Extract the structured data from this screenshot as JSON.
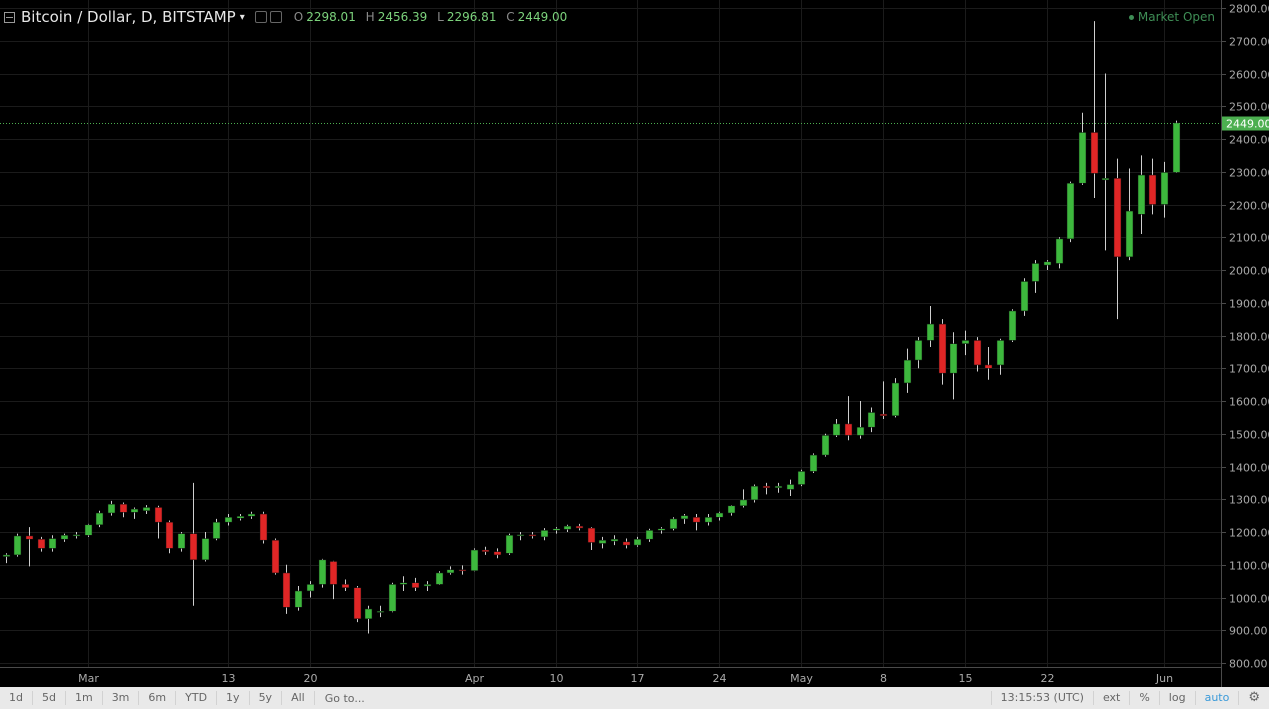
{
  "legend": {
    "title": "Bitcoin / Dollar, D, BITSTAMP",
    "caret": "▾",
    "open_label": "O",
    "open": "2298.01",
    "high_label": "H",
    "high": "2456.39",
    "low_label": "L",
    "low": "2296.81",
    "close_label": "C",
    "close": "2449.00"
  },
  "market_status": "Market Open",
  "toolbar": {
    "ranges": [
      "1d",
      "5d",
      "1m",
      "3m",
      "6m",
      "YTD",
      "1y",
      "5y",
      "All"
    ],
    "goto": "Go to...",
    "time": "13:15:53 (UTC)",
    "ext": "ext",
    "percent": "%",
    "log": "log",
    "auto": "auto",
    "settings_icon": "gear-icon"
  },
  "colors": {
    "up": "#3db83d",
    "down": "#e02626",
    "grid": "#1b1b1b",
    "background": "#000000",
    "last_price": "#4caf50"
  },
  "chart_data": {
    "type": "candlestick",
    "title": "Bitcoin / Dollar, D, BITSTAMP",
    "last_price_label": "2449.00",
    "ylim": [
      780,
      2840
    ],
    "y_ticks": [
      "800.00",
      "900.00",
      "1000.00",
      "1100.00",
      "1200.00",
      "1300.00",
      "1400.00",
      "1500.00",
      "1600.00",
      "1700.00",
      "1800.00",
      "1900.00",
      "2000.00",
      "2100.00",
      "2200.00",
      "2300.00",
      "2400.00",
      "2500.00",
      "2600.00",
      "2700.00",
      "2800.00"
    ],
    "y_tick_values": [
      800,
      900,
      1000,
      1100,
      1200,
      1300,
      1400,
      1500,
      1600,
      1700,
      1800,
      1900,
      2000,
      2100,
      2200,
      2300,
      2400,
      2500,
      2600,
      2700,
      2800
    ],
    "x_ticks": [
      {
        "label": "Mar",
        "date": "2017-03-01"
      },
      {
        "label": "13",
        "date": "2017-03-13"
      },
      {
        "label": "20",
        "date": "2017-03-20"
      },
      {
        "label": "Apr",
        "date": "2017-04-03"
      },
      {
        "label": "10",
        "date": "2017-04-10"
      },
      {
        "label": "17",
        "date": "2017-04-17"
      },
      {
        "label": "24",
        "date": "2017-04-24"
      },
      {
        "label": "May",
        "date": "2017-05-01"
      },
      {
        "label": "8",
        "date": "2017-05-08"
      },
      {
        "label": "15",
        "date": "2017-05-15"
      },
      {
        "label": "22",
        "date": "2017-05-22"
      },
      {
        "label": "Jun",
        "date": "2017-06-01"
      }
    ],
    "candles": [
      {
        "date": "2017-02-22",
        "o": 1125,
        "h": 1135,
        "l": 1105,
        "c": 1130
      },
      {
        "date": "2017-02-23",
        "o": 1130,
        "h": 1195,
        "l": 1125,
        "c": 1188
      },
      {
        "date": "2017-02-24",
        "o": 1188,
        "h": 1215,
        "l": 1095,
        "c": 1178
      },
      {
        "date": "2017-02-25",
        "o": 1178,
        "h": 1185,
        "l": 1140,
        "c": 1150
      },
      {
        "date": "2017-02-26",
        "o": 1150,
        "h": 1190,
        "l": 1140,
        "c": 1180
      },
      {
        "date": "2017-02-27",
        "o": 1178,
        "h": 1195,
        "l": 1170,
        "c": 1190
      },
      {
        "date": "2017-02-28",
        "o": 1188,
        "h": 1200,
        "l": 1180,
        "c": 1192
      },
      {
        "date": "2017-03-01",
        "o": 1190,
        "h": 1225,
        "l": 1185,
        "c": 1222
      },
      {
        "date": "2017-03-02",
        "o": 1222,
        "h": 1265,
        "l": 1215,
        "c": 1258
      },
      {
        "date": "2017-03-03",
        "o": 1258,
        "h": 1295,
        "l": 1250,
        "c": 1285
      },
      {
        "date": "2017-03-04",
        "o": 1285,
        "h": 1290,
        "l": 1245,
        "c": 1260
      },
      {
        "date": "2017-03-05",
        "o": 1260,
        "h": 1275,
        "l": 1240,
        "c": 1270
      },
      {
        "date": "2017-03-06",
        "o": 1265,
        "h": 1282,
        "l": 1255,
        "c": 1275
      },
      {
        "date": "2017-03-07",
        "o": 1275,
        "h": 1280,
        "l": 1180,
        "c": 1230
      },
      {
        "date": "2017-03-08",
        "o": 1230,
        "h": 1235,
        "l": 1135,
        "c": 1150
      },
      {
        "date": "2017-03-09",
        "o": 1150,
        "h": 1200,
        "l": 1140,
        "c": 1195
      },
      {
        "date": "2017-03-10",
        "o": 1195,
        "h": 1350,
        "l": 975,
        "c": 1115
      },
      {
        "date": "2017-03-11",
        "o": 1115,
        "h": 1200,
        "l": 1110,
        "c": 1180
      },
      {
        "date": "2017-03-12",
        "o": 1180,
        "h": 1240,
        "l": 1175,
        "c": 1230
      },
      {
        "date": "2017-03-13",
        "o": 1230,
        "h": 1255,
        "l": 1220,
        "c": 1245
      },
      {
        "date": "2017-03-14",
        "o": 1242,
        "h": 1255,
        "l": 1235,
        "c": 1248
      },
      {
        "date": "2017-03-15",
        "o": 1248,
        "h": 1262,
        "l": 1240,
        "c": 1255
      },
      {
        "date": "2017-03-16",
        "o": 1255,
        "h": 1262,
        "l": 1165,
        "c": 1175
      },
      {
        "date": "2017-03-17",
        "o": 1175,
        "h": 1180,
        "l": 1070,
        "c": 1075
      },
      {
        "date": "2017-03-18",
        "o": 1075,
        "h": 1100,
        "l": 950,
        "c": 970
      },
      {
        "date": "2017-03-19",
        "o": 970,
        "h": 1035,
        "l": 960,
        "c": 1020
      },
      {
        "date": "2017-03-20",
        "o": 1020,
        "h": 1050,
        "l": 1000,
        "c": 1040
      },
      {
        "date": "2017-03-21",
        "o": 1040,
        "h": 1118,
        "l": 1030,
        "c": 1115
      },
      {
        "date": "2017-03-22",
        "o": 1110,
        "h": 1112,
        "l": 995,
        "c": 1040
      },
      {
        "date": "2017-03-23",
        "o": 1040,
        "h": 1055,
        "l": 1020,
        "c": 1030
      },
      {
        "date": "2017-03-24",
        "o": 1030,
        "h": 1035,
        "l": 925,
        "c": 935
      },
      {
        "date": "2017-03-25",
        "o": 935,
        "h": 975,
        "l": 890,
        "c": 965
      },
      {
        "date": "2017-03-26",
        "o": 955,
        "h": 975,
        "l": 940,
        "c": 958
      },
      {
        "date": "2017-03-27",
        "o": 958,
        "h": 1045,
        "l": 955,
        "c": 1040
      },
      {
        "date": "2017-03-28",
        "o": 1040,
        "h": 1065,
        "l": 1020,
        "c": 1045
      },
      {
        "date": "2017-03-29",
        "o": 1045,
        "h": 1060,
        "l": 1020,
        "c": 1030
      },
      {
        "date": "2017-03-30",
        "o": 1035,
        "h": 1050,
        "l": 1020,
        "c": 1040
      },
      {
        "date": "2017-03-31",
        "o": 1040,
        "h": 1080,
        "l": 1038,
        "c": 1075
      },
      {
        "date": "2017-04-01",
        "o": 1075,
        "h": 1095,
        "l": 1070,
        "c": 1085
      },
      {
        "date": "2017-04-02",
        "o": 1085,
        "h": 1098,
        "l": 1070,
        "c": 1082
      },
      {
        "date": "2017-04-03",
        "o": 1082,
        "h": 1150,
        "l": 1080,
        "c": 1145
      },
      {
        "date": "2017-04-04",
        "o": 1145,
        "h": 1155,
        "l": 1130,
        "c": 1140
      },
      {
        "date": "2017-04-05",
        "o": 1140,
        "h": 1150,
        "l": 1120,
        "c": 1130
      },
      {
        "date": "2017-04-06",
        "o": 1135,
        "h": 1195,
        "l": 1130,
        "c": 1190
      },
      {
        "date": "2017-04-07",
        "o": 1190,
        "h": 1200,
        "l": 1175,
        "c": 1192
      },
      {
        "date": "2017-04-08",
        "o": 1192,
        "h": 1200,
        "l": 1180,
        "c": 1188
      },
      {
        "date": "2017-04-09",
        "o": 1185,
        "h": 1212,
        "l": 1175,
        "c": 1205
      },
      {
        "date": "2017-04-10",
        "o": 1205,
        "h": 1215,
        "l": 1195,
        "c": 1210
      },
      {
        "date": "2017-04-11",
        "o": 1208,
        "h": 1222,
        "l": 1200,
        "c": 1218
      },
      {
        "date": "2017-04-12",
        "o": 1218,
        "h": 1225,
        "l": 1205,
        "c": 1212
      },
      {
        "date": "2017-04-13",
        "o": 1212,
        "h": 1215,
        "l": 1145,
        "c": 1168
      },
      {
        "date": "2017-04-14",
        "o": 1165,
        "h": 1185,
        "l": 1150,
        "c": 1175
      },
      {
        "date": "2017-04-15",
        "o": 1172,
        "h": 1190,
        "l": 1160,
        "c": 1178
      },
      {
        "date": "2017-04-16",
        "o": 1170,
        "h": 1180,
        "l": 1150,
        "c": 1160
      },
      {
        "date": "2017-04-17",
        "o": 1160,
        "h": 1185,
        "l": 1155,
        "c": 1178
      },
      {
        "date": "2017-04-18",
        "o": 1178,
        "h": 1210,
        "l": 1170,
        "c": 1205
      },
      {
        "date": "2017-04-19",
        "o": 1205,
        "h": 1215,
        "l": 1195,
        "c": 1210
      },
      {
        "date": "2017-04-20",
        "o": 1210,
        "h": 1245,
        "l": 1205,
        "c": 1240
      },
      {
        "date": "2017-04-21",
        "o": 1240,
        "h": 1255,
        "l": 1225,
        "c": 1250
      },
      {
        "date": "2017-04-22",
        "o": 1245,
        "h": 1255,
        "l": 1205,
        "c": 1230
      },
      {
        "date": "2017-04-23",
        "o": 1230,
        "h": 1255,
        "l": 1220,
        "c": 1245
      },
      {
        "date": "2017-04-24",
        "o": 1245,
        "h": 1262,
        "l": 1235,
        "c": 1258
      },
      {
        "date": "2017-04-25",
        "o": 1258,
        "h": 1282,
        "l": 1250,
        "c": 1280
      },
      {
        "date": "2017-04-26",
        "o": 1280,
        "h": 1330,
        "l": 1275,
        "c": 1298
      },
      {
        "date": "2017-04-27",
        "o": 1298,
        "h": 1345,
        "l": 1290,
        "c": 1340
      },
      {
        "date": "2017-04-28",
        "o": 1340,
        "h": 1350,
        "l": 1315,
        "c": 1335
      },
      {
        "date": "2017-04-29",
        "o": 1335,
        "h": 1350,
        "l": 1320,
        "c": 1340
      },
      {
        "date": "2017-04-30",
        "o": 1330,
        "h": 1360,
        "l": 1310,
        "c": 1345
      },
      {
        "date": "2017-05-01",
        "o": 1345,
        "h": 1390,
        "l": 1340,
        "c": 1385
      },
      {
        "date": "2017-05-02",
        "o": 1385,
        "h": 1440,
        "l": 1380,
        "c": 1435
      },
      {
        "date": "2017-05-03",
        "o": 1435,
        "h": 1500,
        "l": 1430,
        "c": 1495
      },
      {
        "date": "2017-05-04",
        "o": 1495,
        "h": 1545,
        "l": 1490,
        "c": 1530
      },
      {
        "date": "2017-05-05",
        "o": 1530,
        "h": 1615,
        "l": 1480,
        "c": 1495
      },
      {
        "date": "2017-05-06",
        "o": 1495,
        "h": 1600,
        "l": 1485,
        "c": 1520
      },
      {
        "date": "2017-05-07",
        "o": 1520,
        "h": 1580,
        "l": 1505,
        "c": 1565
      },
      {
        "date": "2017-05-08",
        "o": 1560,
        "h": 1660,
        "l": 1545,
        "c": 1555
      },
      {
        "date": "2017-05-09",
        "o": 1555,
        "h": 1670,
        "l": 1550,
        "c": 1655
      },
      {
        "date": "2017-05-10",
        "o": 1655,
        "h": 1760,
        "l": 1625,
        "c": 1725
      },
      {
        "date": "2017-05-11",
        "o": 1725,
        "h": 1795,
        "l": 1700,
        "c": 1785
      },
      {
        "date": "2017-05-12",
        "o": 1785,
        "h": 1890,
        "l": 1765,
        "c": 1835
      },
      {
        "date": "2017-05-13",
        "o": 1835,
        "h": 1850,
        "l": 1650,
        "c": 1685
      },
      {
        "date": "2017-05-14",
        "o": 1685,
        "h": 1810,
        "l": 1605,
        "c": 1775
      },
      {
        "date": "2017-05-15",
        "o": 1775,
        "h": 1815,
        "l": 1740,
        "c": 1785
      },
      {
        "date": "2017-05-16",
        "o": 1785,
        "h": 1795,
        "l": 1690,
        "c": 1710
      },
      {
        "date": "2017-05-17",
        "o": 1710,
        "h": 1765,
        "l": 1665,
        "c": 1700
      },
      {
        "date": "2017-05-18",
        "o": 1710,
        "h": 1790,
        "l": 1680,
        "c": 1785
      },
      {
        "date": "2017-05-19",
        "o": 1785,
        "h": 1880,
        "l": 1780,
        "c": 1875
      },
      {
        "date": "2017-05-20",
        "o": 1875,
        "h": 1975,
        "l": 1860,
        "c": 1965
      },
      {
        "date": "2017-05-21",
        "o": 1965,
        "h": 2030,
        "l": 1930,
        "c": 2020
      },
      {
        "date": "2017-05-22",
        "o": 2015,
        "h": 2030,
        "l": 2000,
        "c": 2025
      },
      {
        "date": "2017-05-23",
        "o": 2020,
        "h": 2100,
        "l": 2005,
        "c": 2095
      },
      {
        "date": "2017-05-24",
        "o": 2095,
        "h": 2270,
        "l": 2085,
        "c": 2265
      },
      {
        "date": "2017-05-25",
        "o": 2265,
        "h": 2480,
        "l": 2260,
        "c": 2420
      },
      {
        "date": "2017-05-26",
        "o": 2420,
        "h": 2760,
        "l": 2220,
        "c": 2295
      },
      {
        "date": "2017-05-27",
        "o": 2275,
        "h": 2600,
        "l": 2060,
        "c": 2280
      },
      {
        "date": "2017-05-28",
        "o": 2280,
        "h": 2340,
        "l": 1850,
        "c": 2040
      },
      {
        "date": "2017-05-29",
        "o": 2040,
        "h": 2310,
        "l": 2030,
        "c": 2180
      },
      {
        "date": "2017-05-30",
        "o": 2170,
        "h": 2350,
        "l": 2110,
        "c": 2290
      },
      {
        "date": "2017-05-31",
        "o": 2290,
        "h": 2340,
        "l": 2170,
        "c": 2200
      },
      {
        "date": "2017-06-01",
        "o": 2200,
        "h": 2330,
        "l": 2160,
        "c": 2298
      },
      {
        "date": "2017-06-02",
        "o": 2298,
        "h": 2456,
        "l": 2296,
        "c": 2449
      }
    ]
  }
}
